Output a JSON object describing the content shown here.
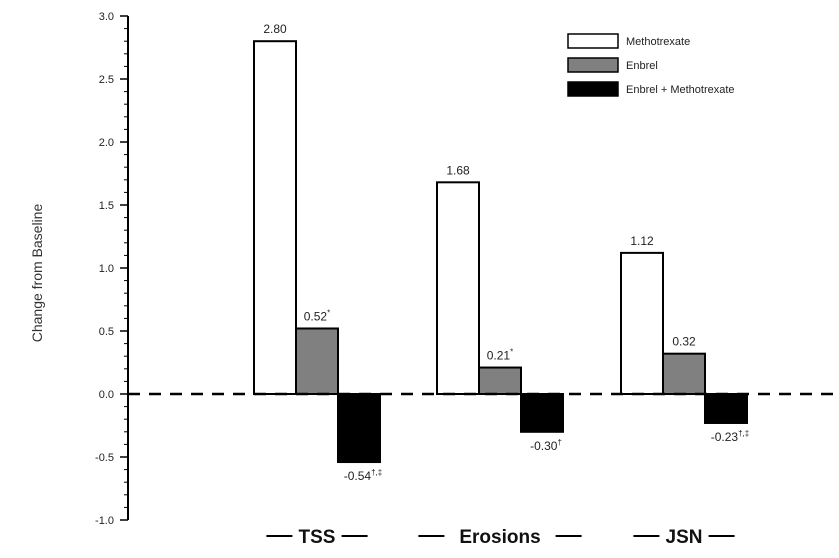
{
  "chart_data": {
    "type": "bar",
    "ylabel": "Change from Baseline",
    "ylim": [
      -1.0,
      3.0
    ],
    "yticks": [
      "3.0",
      "2.5",
      "2.0",
      "1.5",
      "1.0",
      "0.5",
      "0.0",
      "-0.5",
      "-1.0"
    ],
    "ytick_values": [
      3.0,
      2.5,
      2.0,
      1.5,
      1.0,
      0.5,
      0.0,
      -0.5,
      -1.0
    ],
    "categories": [
      "TSS",
      "Erosions",
      "JSN"
    ],
    "reference_line": 0.0,
    "legend_position": "top-right",
    "series": [
      {
        "name": "Methotrexate",
        "color": "#ffffff",
        "values": [
          2.8,
          1.68,
          1.12
        ],
        "labels": [
          "2.80",
          "1.68",
          "1.12"
        ],
        "label_marks": [
          "",
          "",
          ""
        ]
      },
      {
        "name": "Enbrel",
        "color": "#808080",
        "values": [
          0.52,
          0.21,
          0.32
        ],
        "labels": [
          "0.52",
          "0.21",
          "0.32"
        ],
        "label_marks": [
          "*",
          "*",
          ""
        ]
      },
      {
        "name": "Enbrel + Methotrexate",
        "color": "#000000",
        "values": [
          -0.54,
          -0.3,
          -0.23
        ],
        "labels": [
          "-0.54",
          "-0.30",
          "-0.23"
        ],
        "label_marks": [
          "†,‡",
          "†",
          "†,‡"
        ]
      }
    ]
  }
}
